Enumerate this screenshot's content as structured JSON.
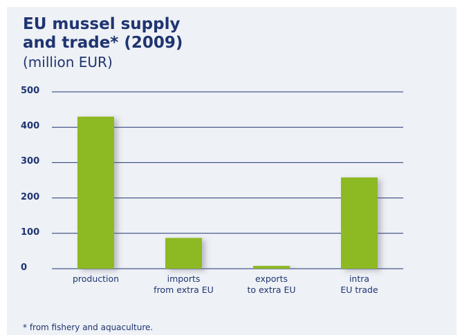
{
  "chart_data": {
    "type": "bar",
    "title": "EU mussel supply\nand trade* (2009)",
    "subtitle": "(million EUR)",
    "categories": [
      "production",
      "imports\nfrom extra EU",
      "exports\nto extra EU",
      "intra\nEU trade"
    ],
    "values": [
      430,
      87,
      8,
      258
    ],
    "color": "#8db921",
    "ylim": [
      0,
      500
    ],
    "yticks": [
      0,
      100,
      200,
      300,
      400,
      500
    ],
    "grid": true,
    "footnote": "* from fishery and aquaculture."
  }
}
